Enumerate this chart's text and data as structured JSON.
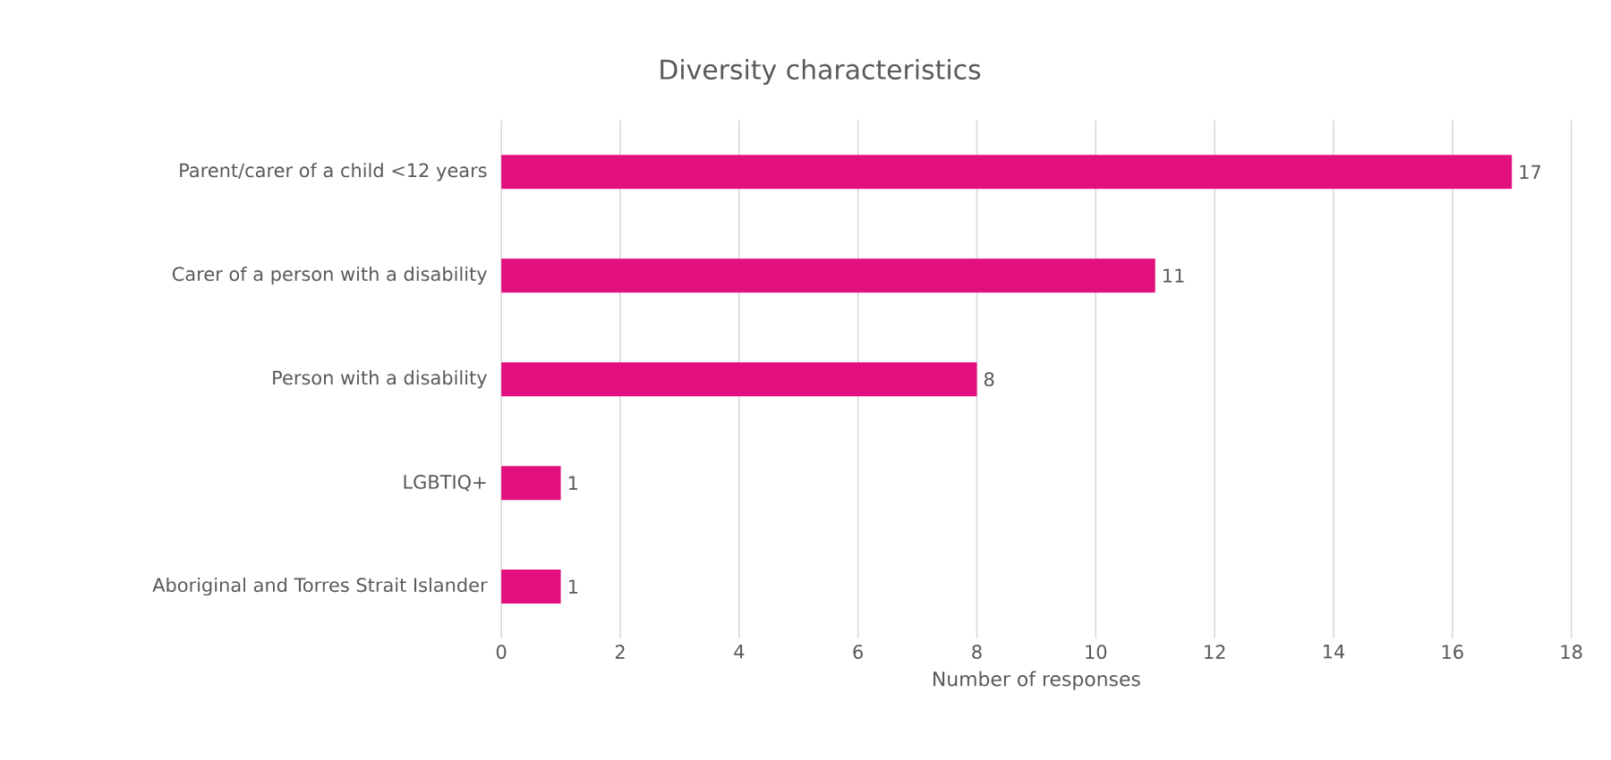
{
  "chart_data": {
    "type": "bar",
    "orientation": "horizontal",
    "title": "Diversity characteristics",
    "xlabel": "Number of responses",
    "categories": [
      "Parent/carer of a child <12 years",
      "Carer of a person with a disability",
      "Person with a disability",
      "LGBTIQ+",
      "Aboriginal and Torres Strait Islander"
    ],
    "values": [
      17,
      11,
      8,
      1,
      1
    ],
    "color": "#e20f7f",
    "xlim": [
      0,
      18
    ],
    "xticks": [
      0,
      2,
      4,
      6,
      8,
      10,
      12,
      14,
      16,
      18
    ],
    "grid": "x",
    "data_labels": true
  }
}
